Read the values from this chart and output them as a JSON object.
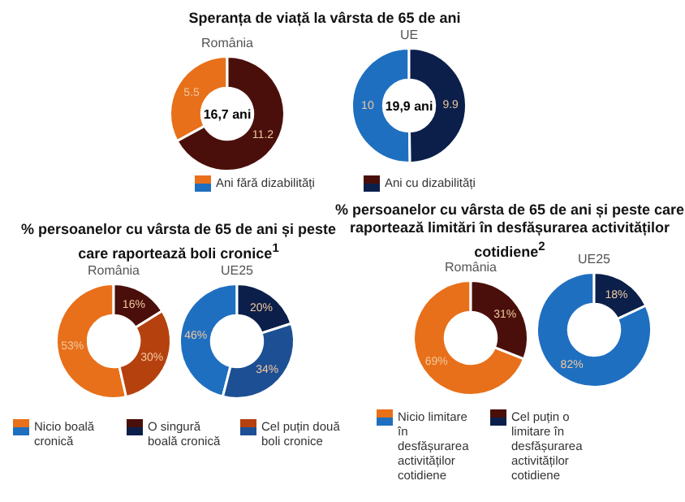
{
  "chart_data": [
    {
      "type": "donut",
      "title": "Speranța de viață la vârsta de 65 de ani",
      "subtitle": "România",
      "categories": [
        "Ani fără dizabilități",
        "Ani cu dizabilități"
      ],
      "values": [
        5.5,
        11.2
      ],
      "colors": [
        "#e8701a",
        "#4a0f0a"
      ],
      "data_labels": true,
      "annotations": [
        "16,7 ani"
      ],
      "legend": "bottom"
    },
    {
      "type": "donut",
      "subtitle": "UE",
      "categories": [
        null,
        null
      ],
      "values": [
        10,
        9.9
      ],
      "colors": [
        "#1f6fc0",
        "#0b1f4a"
      ],
      "data_labels": true,
      "annotations": [
        "19,9 ani"
      ]
    },
    {
      "type": "donut",
      "title": "% persoanelor cu vârsta de 65 de ani și peste care raportează boli cronice$^{1}$",
      "subtitle": "România",
      "categories": [
        "Nicio boală cronică",
        "O singură boală cronică",
        "Cel puțin două boli cronice"
      ],
      "values": [
        53,
        16,
        30
      ],
      "value_labels": [
        "53%",
        "16%",
        "30%"
      ],
      "colors": [
        "#e8701a",
        "#4a0f0a",
        "#b5410e"
      ],
      "legend": "bottom"
    },
    {
      "type": "donut",
      "subtitle": "UE25",
      "categories": [
        null,
        null,
        null
      ],
      "values": [
        46,
        20,
        34
      ],
      "value_labels": [
        "46%",
        "20%",
        "34%"
      ],
      "colors": [
        "#1f6fc0",
        "#0b1f4a",
        "#1d4f94"
      ]
    },
    {
      "type": "donut",
      "title": "% persoanelor cu vârsta de 65 de ani și peste care raportează limitări în desfășurarea activităților cotidiene$^{2}$",
      "subtitle": "România",
      "categories": [
        "Nicio limitare în desfășurarea activităților cotidiene",
        "Cel puțin o limitare în desfășurarea activităților cotidiene"
      ],
      "values": [
        69,
        31
      ],
      "value_labels": [
        "69%",
        "31%"
      ],
      "colors": [
        "#e8701a",
        "#4a0f0a"
      ],
      "legend": "bottom"
    },
    {
      "type": "donut",
      "subtitle": "UE25",
      "categories": [
        null,
        null
      ],
      "values": [
        82,
        18
      ],
      "value_labels": [
        "82%",
        "18%"
      ],
      "colors": [
        "#1f6fc0",
        "#0b1f4a"
      ]
    }
  ]
}
